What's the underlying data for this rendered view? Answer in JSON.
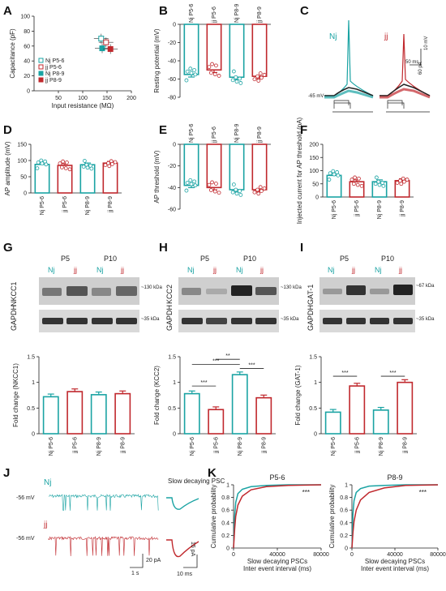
{
  "colors": {
    "nj": "#1aa3a3",
    "jj": "#c0282d",
    "black": "#222222"
  },
  "panel_letters": [
    "A",
    "B",
    "C",
    "D",
    "E",
    "F",
    "G",
    "H",
    "I",
    "J",
    "K"
  ],
  "conditions": [
    "Nj P5-6",
    "jj P5-6",
    "Nj P8-9",
    "jj P8-9"
  ],
  "legend_A": [
    "Nj P5-6",
    "jj P5-6",
    "Nj P8-9",
    "jj P8-9"
  ],
  "genotype": {
    "nj": "Nj",
    "jj": "jj"
  },
  "ages_blot": {
    "p5": "P5",
    "p10": "P10"
  },
  "kda": {
    "nkcc1": "~130 kDa",
    "kcc2": "~130 kDa",
    "gat1": "~67 kDa",
    "gapdh": "~35 kDa"
  },
  "blot_labels": {
    "nkcc1": "NKCC1",
    "kcc2": "KCC2",
    "gat1": "GAT-1",
    "gapdh": "GAPDH"
  },
  "C": {
    "vm": "-65 mV",
    "sb_ms": "50 ms",
    "sb_mv": "10 mV",
    "sb_pa": "60 pA"
  },
  "J": {
    "vm1": "-56 mV",
    "vm2": "-56 mV",
    "title": "Slow decaying PSC",
    "sb1_y": "20 pA",
    "sb1_x": "1 s",
    "sb2_y": "15 pA",
    "sb2_x": "10 ms"
  },
  "K": {
    "title1": "P5-6",
    "title2": "P8-9",
    "xlabel1": "Slow decaying PSCs",
    "xlabel2": "Inter event interval (ms)",
    "ylabel": "Cumulative probability",
    "sig": "***"
  },
  "sig": {
    "s3": "***",
    "s2": "**"
  },
  "chart_data": [
    {
      "panel": "A",
      "type": "scatter",
      "xlabel": "Input resistance (MΩ)",
      "ylabel": "Capacitance (pF)",
      "xlim": [
        0,
        200
      ],
      "ylim": [
        0,
        100
      ],
      "xticks": [
        50,
        100,
        150,
        200
      ],
      "yticks": [
        0,
        20,
        40,
        60,
        80,
        100
      ],
      "series": [
        {
          "name": "Nj P5-6",
          "x": [
            138
          ],
          "y": [
            70
          ]
        },
        {
          "name": "jj P5-6",
          "x": [
            148
          ],
          "y": [
            65
          ]
        },
        {
          "name": "Nj P8-9",
          "x": [
            140
          ],
          "y": [
            57
          ]
        },
        {
          "name": "jj P8-9",
          "x": [
            157
          ],
          "y": [
            56
          ]
        }
      ]
    },
    {
      "panel": "B",
      "type": "bar",
      "ylabel": "Resting potential (mV)",
      "ylim": [
        -80,
        0
      ],
      "yticks": [
        0,
        -20,
        -40,
        -60,
        -80
      ],
      "categories": [
        "Nj P5-6",
        "jj P5-6",
        "Nj P8-9",
        "jj P8-9"
      ],
      "values": [
        -55,
        -50,
        -58,
        -57
      ]
    },
    {
      "panel": "D",
      "type": "bar",
      "ylabel": "AP amplitude (mV)",
      "ylim": [
        0,
        150
      ],
      "yticks": [
        0,
        50,
        100,
        150
      ],
      "categories": [
        "Nj P5-6",
        "jj P5-6",
        "Nj P8-9",
        "jj P8-9"
      ],
      "values": [
        88,
        85,
        87,
        92
      ]
    },
    {
      "panel": "E",
      "type": "bar",
      "ylabel": "AP threshold (mV)",
      "ylim": [
        -60,
        0
      ],
      "yticks": [
        0,
        -20,
        -40,
        -60
      ],
      "categories": [
        "Nj P5-6",
        "jj P5-6",
        "Nj P8-9",
        "jj P8-9"
      ],
      "values": [
        -38,
        -40,
        -42,
        -42
      ]
    },
    {
      "panel": "F",
      "type": "bar",
      "ylabel": "Injected current for AP threshold (pA)",
      "ylim": [
        0,
        200
      ],
      "yticks": [
        0,
        50,
        100,
        150,
        200
      ],
      "categories": [
        "Nj P5-6",
        "jj P5-6",
        "Nj P8-9",
        "jj P8-9"
      ],
      "values": [
        82,
        58,
        58,
        62
      ]
    },
    {
      "panel": "G",
      "type": "bar",
      "ylabel": "Fold change (NKCC1)",
      "ylim": [
        0,
        1.5
      ],
      "yticks": [
        0,
        0.5,
        1.0,
        1.5
      ],
      "categories": [
        "Nj P5-6",
        "jj P5-6",
        "Nj P8-9",
        "jj P8-9"
      ],
      "values": [
        0.72,
        0.82,
        0.76,
        0.78
      ]
    },
    {
      "panel": "H",
      "type": "bar",
      "ylabel": "Fold change (KCC2)",
      "ylim": [
        0,
        1.5
      ],
      "yticks": [
        0,
        0.5,
        1.0,
        1.5
      ],
      "categories": [
        "Nj P5-6",
        "jj P5-6",
        "Nj P8-9",
        "jj P8-9"
      ],
      "values": [
        0.78,
        0.47,
        1.15,
        0.7
      ]
    },
    {
      "panel": "I",
      "type": "bar",
      "ylabel": "Fold change (GAT-1)",
      "ylim": [
        0,
        1.5
      ],
      "yticks": [
        0,
        0.5,
        1.0,
        1.5
      ],
      "categories": [
        "Nj P5-6",
        "jj P5-6",
        "Nj P8-9",
        "jj P8-9"
      ],
      "values": [
        0.42,
        0.93,
        0.46,
        1.0
      ]
    },
    {
      "panel": "K1",
      "type": "line",
      "title": "P5-6",
      "xlim": [
        0,
        80000
      ],
      "ylim": [
        0,
        1
      ],
      "xticks": [
        0,
        40000,
        80000
      ],
      "yticks": [
        0,
        0.2,
        0.4,
        0.6,
        0.8,
        1
      ],
      "series": [
        {
          "name": "Nj",
          "x": [
            0,
            1000,
            2000,
            4000,
            8000,
            16000,
            30000,
            50000,
            80000
          ],
          "y": [
            0,
            0.5,
            0.72,
            0.86,
            0.93,
            0.97,
            0.99,
            1,
            1
          ]
        },
        {
          "name": "jj",
          "x": [
            0,
            1000,
            2000,
            4000,
            8000,
            16000,
            30000,
            50000,
            80000
          ],
          "y": [
            0,
            0.3,
            0.5,
            0.68,
            0.82,
            0.92,
            0.97,
            0.99,
            1
          ]
        }
      ]
    },
    {
      "panel": "K2",
      "type": "line",
      "title": "P8-9",
      "xlim": [
        0,
        80000
      ],
      "ylim": [
        0,
        1
      ],
      "xticks": [
        0,
        40000,
        80000
      ],
      "yticks": [
        0,
        0.2,
        0.4,
        0.6,
        0.8,
        1
      ],
      "series": [
        {
          "name": "Nj",
          "x": [
            0,
            1000,
            2000,
            4000,
            8000,
            16000,
            30000,
            50000,
            80000
          ],
          "y": [
            0,
            0.55,
            0.75,
            0.88,
            0.94,
            0.98,
            0.99,
            1,
            1
          ]
        },
        {
          "name": "jj",
          "x": [
            0,
            1000,
            2000,
            4000,
            8000,
            16000,
            30000,
            50000,
            80000
          ],
          "y": [
            0,
            0.25,
            0.42,
            0.6,
            0.76,
            0.88,
            0.95,
            0.99,
            1
          ]
        }
      ]
    }
  ]
}
